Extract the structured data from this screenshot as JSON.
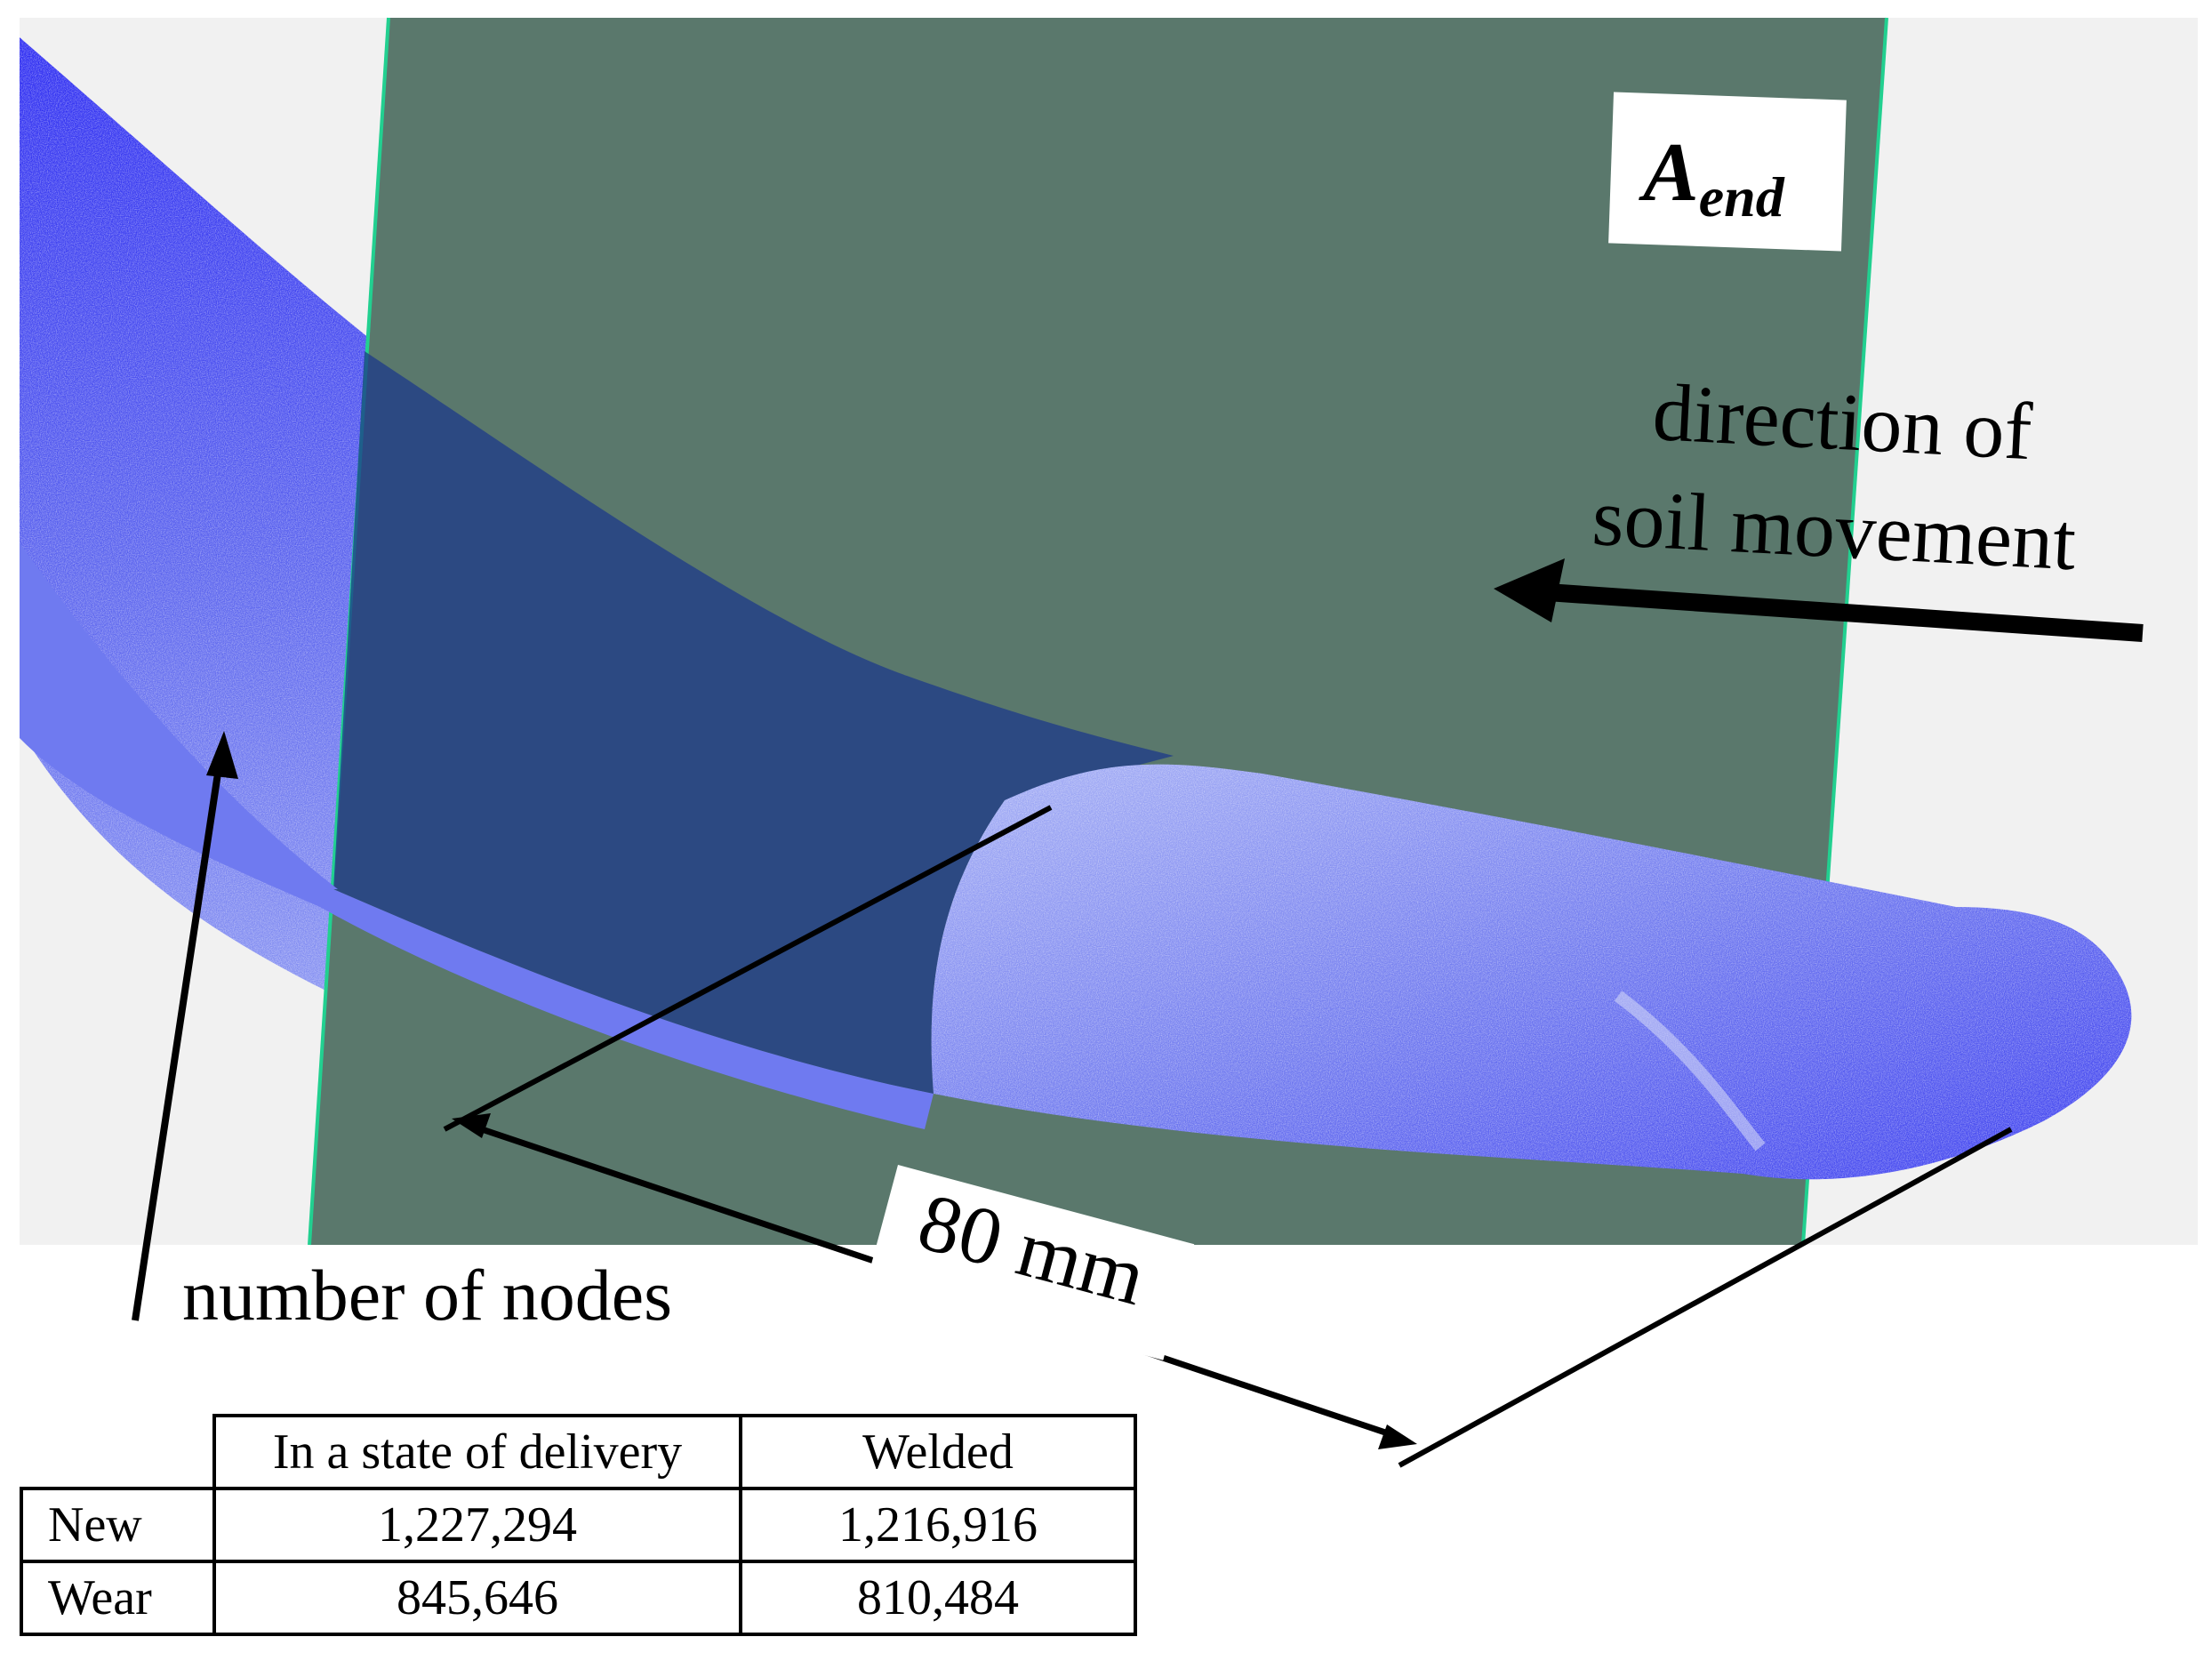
{
  "figure": {
    "plane_label_main": "A",
    "plane_label_sub": "end",
    "direction_line1": "direction of",
    "direction_line2": "soil movement",
    "dimension_label": "80 mm",
    "nodes_label": "number of nodes"
  },
  "colors": {
    "plane": "#5a786c",
    "plane_edge": "#22d090",
    "mesh": "#2d2cf0",
    "background": "#f1f1f1"
  },
  "table": {
    "headers": [
      "In a state of delivery",
      "Welded"
    ],
    "rows": [
      {
        "label": "New",
        "values": [
          "1,227,294",
          "1,216,916"
        ]
      },
      {
        "label": "Wear",
        "values": [
          "845,646",
          "810,484"
        ]
      }
    ]
  }
}
